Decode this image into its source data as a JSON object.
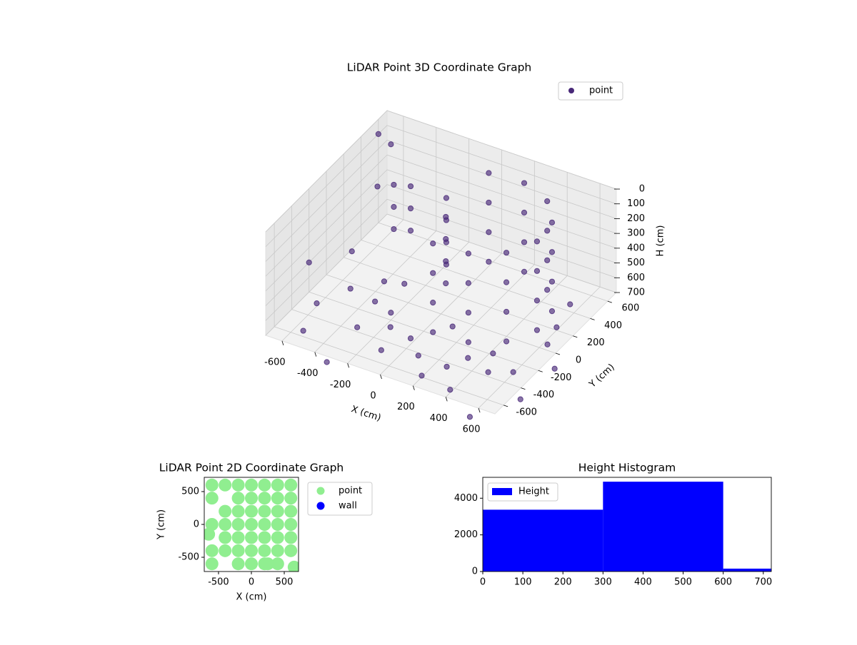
{
  "chart_data": [
    {
      "type": "scatter3d",
      "title": "LiDAR Point 3D Coordinate Graph",
      "xlabel": "X (cm)",
      "ylabel": "Y (cm)",
      "zlabel": "H (cm)",
      "xlim": [
        -700,
        700
      ],
      "ylim": [
        -700,
        700
      ],
      "zlim": [
        700,
        0
      ],
      "xticks": [
        -600,
        -400,
        -200,
        0,
        200,
        400,
        600
      ],
      "yticks": [
        -600,
        -400,
        -200,
        0,
        200,
        400,
        600
      ],
      "zticks": [
        0,
        100,
        200,
        300,
        400,
        500,
        600,
        700
      ],
      "grid": true,
      "legend": "upper right",
      "series": [
        {
          "name": "point",
          "color": "#482878",
          "x": [
            13,
            13,
            13,
            13,
            220,
            220,
            220,
            220,
            407,
            407,
            407,
            407,
            526,
            526,
            526,
            526,
            544,
            544,
            544,
            544,
            456,
            456,
            456,
            456,
            287,
            287,
            287,
            287,
            80,
            80,
            80,
            80,
            -100,
            -100,
            -100,
            -100,
            -50,
            -50,
            -50,
            -50,
            -500,
            -500,
            -500,
            -450,
            -450,
            -450,
            -600,
            -500,
            -400,
            -300,
            -200,
            -100,
            0,
            100,
            200,
            300,
            400,
            500,
            600,
            650,
            600,
            550,
            -650,
            -550,
            -350,
            -250,
            150,
            350,
            450,
            -150,
            -700,
            -650,
            -600,
            -700,
            750,
            800,
            600,
            -300
          ],
          "y": [
            526,
            526,
            526,
            526,
            544,
            544,
            544,
            544,
            456,
            456,
            456,
            456,
            287,
            287,
            287,
            287,
            80,
            80,
            80,
            80,
            -107,
            -107,
            -107,
            -107,
            -226,
            -226,
            -226,
            -226,
            -244,
            -244,
            -244,
            -244,
            250,
            250,
            250,
            250,
            150,
            150,
            150,
            150,
            400,
            400,
            400,
            500,
            500,
            500,
            -300,
            -100,
            100,
            -400,
            -200,
            -500,
            -350,
            -450,
            -600,
            -500,
            -650,
            -400,
            -300,
            0,
            200,
            450,
            200,
            -550,
            -100,
            50,
            -150,
            -350,
            -250,
            -300,
            600,
            650,
            400,
            -200,
            -500,
            -200,
            -800,
            -750
          ],
          "z": [
            50,
            250,
            450,
            650,
            50,
            250,
            450,
            650,
            50,
            250,
            450,
            650,
            50,
            250,
            450,
            650,
            50,
            250,
            450,
            650,
            50,
            250,
            450,
            650,
            50,
            250,
            450,
            650,
            50,
            250,
            450,
            650,
            100,
            250,
            400,
            550,
            150,
            300,
            450,
            600,
            250,
            400,
            550,
            300,
            450,
            600,
            680,
            660,
            690,
            670,
            650,
            690,
            660,
            680,
            690,
            650,
            680,
            670,
            690,
            660,
            680,
            690,
            640,
            700,
            690,
            620,
            640,
            660,
            650,
            670,
            100,
            180,
            300,
            500,
            700,
            650,
            700,
            700
          ]
        }
      ]
    },
    {
      "type": "scatter",
      "title": "LiDAR Point 2D Coordinate Graph",
      "xlabel": "X (cm)",
      "ylabel": "Y (cm)",
      "xlim": [
        -717,
        717
      ],
      "ylim": [
        -717,
        717
      ],
      "xticks": [
        -500,
        0,
        500
      ],
      "yticks": [
        -500,
        0,
        500
      ],
      "legend": "outside right",
      "series": [
        {
          "name": "point",
          "color": "#90ee90",
          "x": [
            -600,
            -400,
            -200,
            0,
            200,
            400,
            600,
            -600,
            -200,
            0,
            200,
            400,
            600,
            -400,
            -200,
            0,
            200,
            400,
            600,
            -600,
            -400,
            -200,
            0,
            200,
            400,
            600,
            -400,
            -200,
            0,
            200,
            400,
            600,
            -600,
            -400,
            -200,
            0,
            200,
            400,
            600,
            -600,
            -200,
            0,
            200,
            400,
            -650,
            250,
            650
          ],
          "y": [
            600,
            600,
            600,
            600,
            600,
            600,
            600,
            400,
            400,
            400,
            400,
            400,
            400,
            200,
            200,
            200,
            200,
            200,
            200,
            0,
            0,
            0,
            0,
            0,
            0,
            0,
            -200,
            -200,
            -200,
            -200,
            -200,
            -200,
            -400,
            -400,
            -400,
            -400,
            -400,
            -400,
            -400,
            -600,
            -600,
            -600,
            -600,
            -600,
            -150,
            -600,
            -650
          ]
        },
        {
          "name": "wall",
          "color": "#0000ff",
          "x": [],
          "y": []
        }
      ]
    },
    {
      "type": "histogram",
      "title": "Height Histogram",
      "bins": [
        0,
        300,
        600,
        720
      ],
      "series": [
        {
          "name": "Height",
          "color": "#0000ff",
          "values": [
            3373,
            4902,
            157
          ]
        }
      ],
      "xlim": [
        0,
        720
      ],
      "ylim": [
        0,
        5140
      ],
      "xticks": [
        0,
        100,
        200,
        300,
        400,
        500,
        600,
        700
      ],
      "yticks": [
        0,
        2000,
        4000
      ],
      "legend": "upper left"
    }
  ]
}
